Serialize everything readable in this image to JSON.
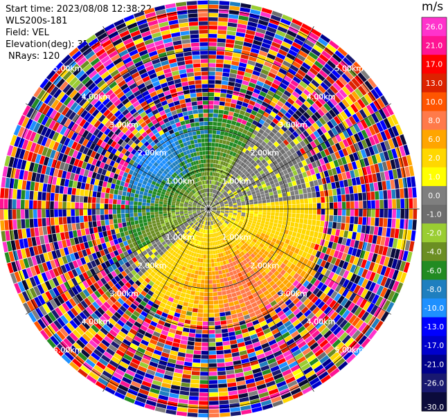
{
  "header": {
    "start_time": "Start time: 2023/08/08 12:38:22",
    "instrument": "WLS200s-181",
    "field": "Field: VEL",
    "elevation": "Elevation(deg): 35.30",
    "nrays": "NRays: 120"
  },
  "chart_data": {
    "type": "heatmap",
    "projection": "polar-ppi",
    "field": "VEL",
    "units": "m/s",
    "nrays": 120,
    "elevation_deg": 35.3,
    "range_rings_km": [
      1.0,
      2.0,
      3.0,
      4.0,
      5.0
    ],
    "ring_labels": [
      "1.00km",
      "2.00km",
      "3.00km",
      "4.00km",
      "5.00km"
    ],
    "max_range_km": 5.3,
    "colorbar": {
      "label": "m/s",
      "ticks": [
        "26.0",
        "21.0",
        "17.0",
        "13.0",
        "10.0",
        "8.0",
        "6.0",
        "2.0",
        "1.0",
        "0.0",
        "-1.0",
        "-2.0",
        "-4.0",
        "-6.0",
        "-8.0",
        "-10.0",
        "-13.0",
        "-17.0",
        "-21.0",
        "-26.0",
        "-30.0"
      ],
      "boundaries": [
        30,
        26,
        21,
        17,
        13,
        10,
        8,
        6,
        2,
        1,
        0,
        -1,
        -2,
        -4,
        -6,
        -8,
        -10,
        -13,
        -17,
        -21,
        -26,
        -30
      ],
      "colors": [
        "#ff33cc",
        "#ff1493",
        "#ff0000",
        "#dd2200",
        "#ff5500",
        "#ff7a4a",
        "#ffa500",
        "#ffd700",
        "#ffff00",
        "#7f7f7f",
        "#6e6e6e",
        "#9acd32",
        "#6b8e23",
        "#228b22",
        "#1f7fbf",
        "#1e90ff",
        "#0000ff",
        "#0000cd",
        "#00008b",
        "#191970",
        "#0b0b3b"
      ]
    },
    "wind_pattern": {
      "inner_zone_km": 2.7,
      "toward_sector_center_deg": 315,
      "away_sector_center_deg": 155,
      "max_toward_ms": -9.0,
      "max_away_ms": 9.0
    }
  }
}
